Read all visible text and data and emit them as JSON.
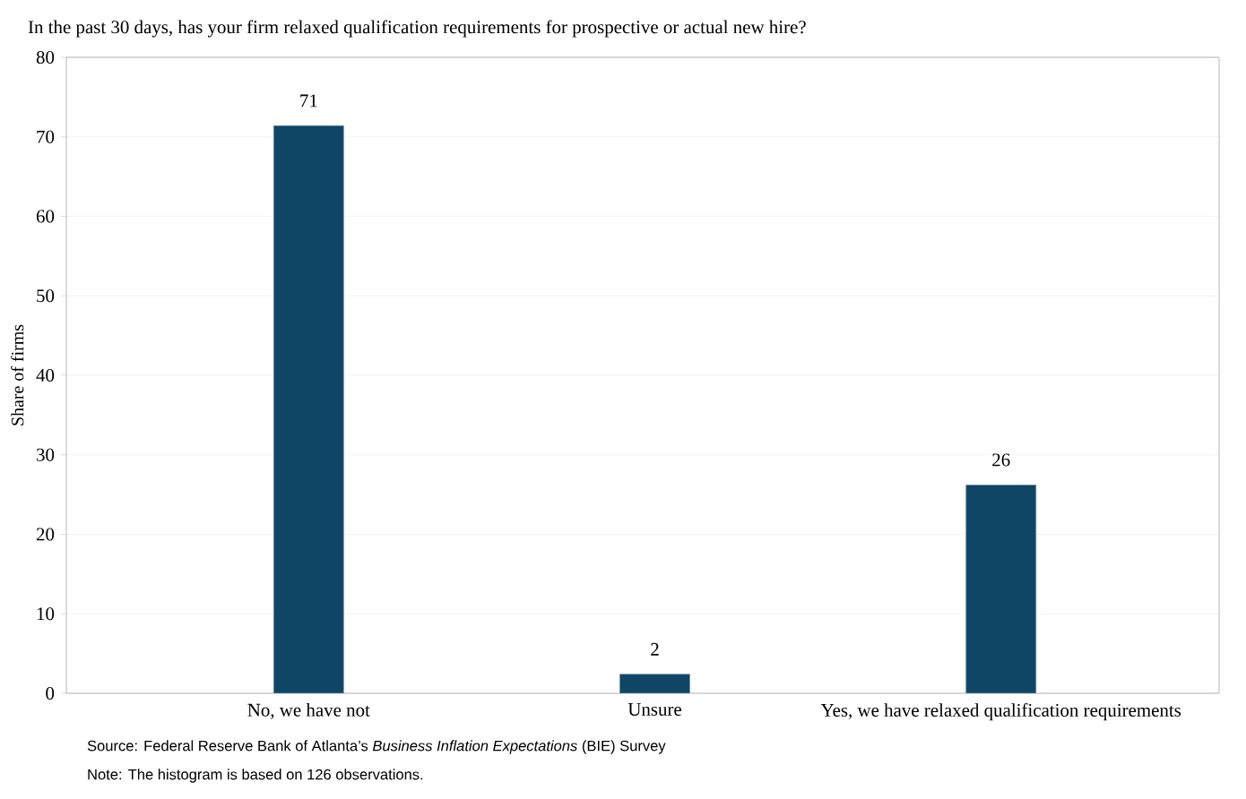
{
  "chart_data": {
    "type": "bar",
    "title": "In the past 30 days, has your firm relaxed qualification requirements for prospective or actual new hire?",
    "ylabel": "Share of firms",
    "categories": [
      "No, we have not",
      "Unsure",
      "Yes, we have relaxed qualification requirements"
    ],
    "values": [
      71.4,
      2.4,
      26.2
    ],
    "value_labels": [
      "71",
      "2",
      "26"
    ],
    "color": "#0f4666",
    "ylim": [
      0,
      80
    ],
    "yticks": [
      0,
      10,
      20,
      30,
      40,
      50,
      60,
      70,
      80
    ],
    "grid": "y",
    "annotations": [
      "Source: Federal Reserve Bank of Atlanta’s *Business Inflation Expectations* (BIE) Survey",
      "Note: The histogram is based on 126 observations."
    ]
  }
}
